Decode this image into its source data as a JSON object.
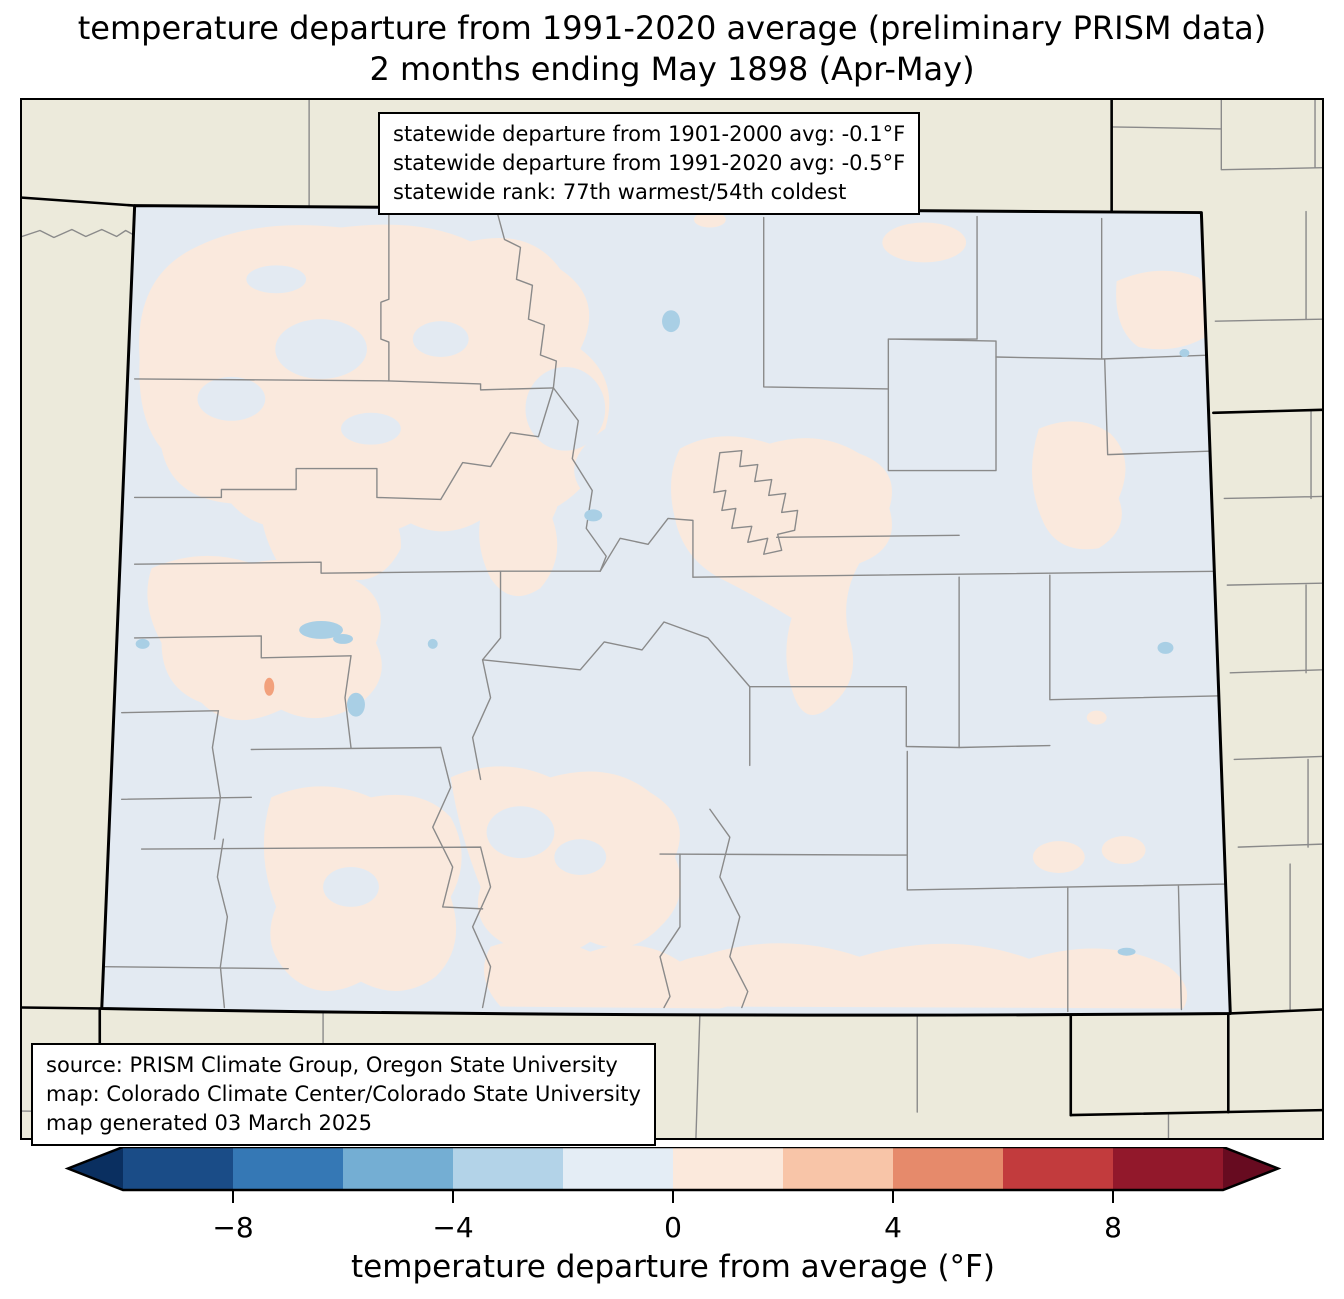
{
  "figure": {
    "title_line1": "temperature departure from 1991-2020 average (preliminary PRISM data)",
    "title_line2": "2 months ending May 1898 (Apr-May)"
  },
  "stats_box": {
    "line1": "statewide departure from 1901-2000 avg: -0.1°F",
    "line2": "statewide departure from 1991-2020 avg: -0.5°F",
    "line3": "statewide rank: 77th warmest/54th coldest"
  },
  "source_box": {
    "line1": "source: PRISM Climate Group, Oregon State University",
    "line2": "map: Colorado Climate Center/Colorado State University",
    "line3": "map generated 03 March 2025"
  },
  "colorbar": {
    "label": "temperature departure from average (°F)",
    "tick_labels": [
      "−8",
      "−4",
      "0",
      "4",
      "8"
    ],
    "tick_values": [
      -8,
      -4,
      0,
      4,
      8
    ],
    "range_min": -10,
    "range_max": 10,
    "segment_step_f": 2,
    "segment_colors": [
      "#1a4c87",
      "#3578b5",
      "#74aed3",
      "#b3d3e8",
      "#e4edf5",
      "#fbe9dc",
      "#f8c5a8",
      "#e68a6b",
      "#c23b3d",
      "#92182b"
    ],
    "under_color": "#0a2f60",
    "over_color": "#670b20"
  },
  "map": {
    "region": "Colorado with county boundaries and neighboring states",
    "colors": {
      "outside_fill": "#eceadb",
      "near_zero_cool_fill": "#e3eaf2",
      "warm_patch_fill": "#fae9dd",
      "warm_spot_fill": "#f2a17c",
      "lake_fill": "#a9cfe5",
      "county_line": "#8a8a8a",
      "state_line": "#000000"
    }
  }
}
